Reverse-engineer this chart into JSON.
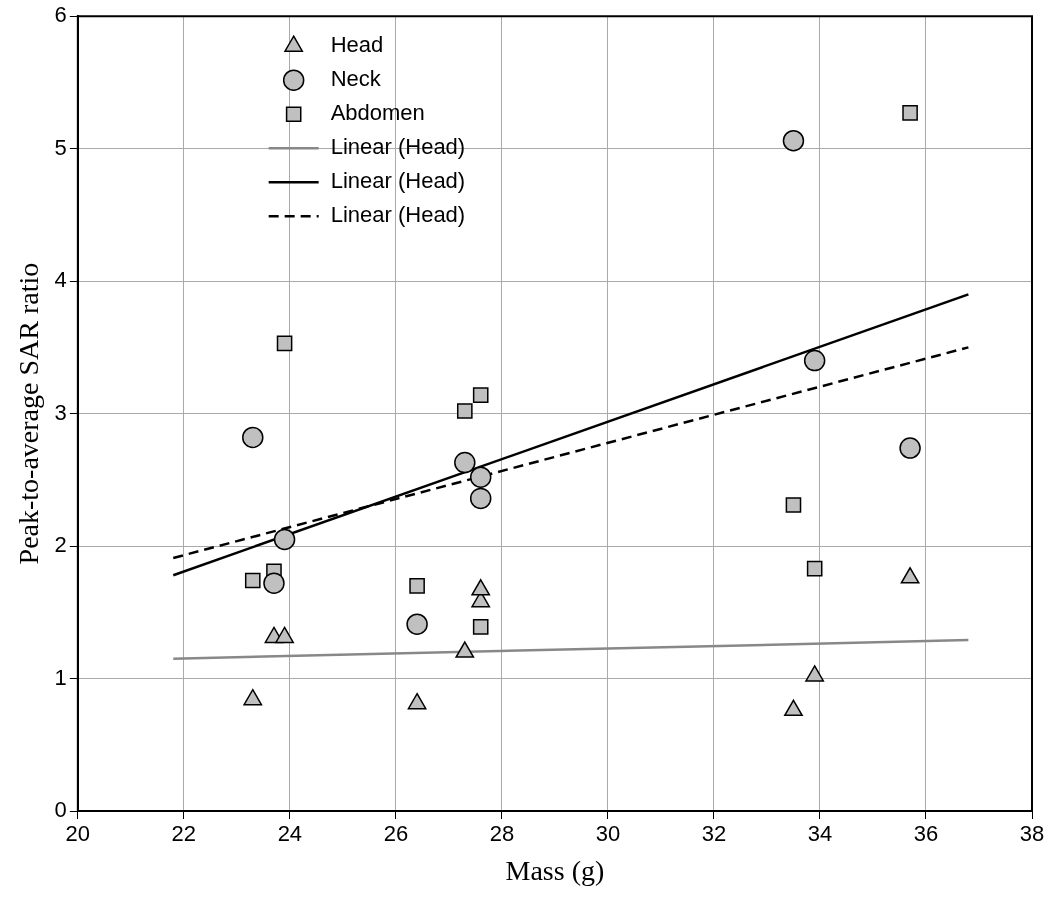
{
  "chart_data": {
    "type": "scatter",
    "xlabel": "Mass (g)",
    "ylabel": "Peak-to-average SAR ratio",
    "xlim": [
      20,
      38
    ],
    "xticks": [
      20,
      22,
      24,
      26,
      28,
      30,
      32,
      34,
      36,
      38
    ],
    "ylim": [
      0,
      6
    ],
    "yticks": [
      0,
      1,
      2,
      3,
      4,
      5,
      6
    ],
    "grid": true,
    "legend": "top",
    "series": [
      {
        "name": "Head",
        "marker": "triangle",
        "color": "#c0c0c0",
        "x": [
          23.3,
          23.7,
          23.9,
          26.4,
          27.3,
          27.6,
          27.6,
          33.5,
          33.9,
          35.7
        ],
        "values": [
          0.84,
          1.31,
          1.31,
          0.81,
          1.2,
          1.58,
          1.67,
          0.76,
          1.02,
          1.76
        ]
      },
      {
        "name": "Neck",
        "marker": "circle",
        "color": "#c0c0c0",
        "x": [
          23.3,
          23.7,
          23.9,
          26.4,
          27.3,
          27.6,
          27.6,
          33.5,
          33.9,
          35.7
        ],
        "values": [
          2.82,
          1.72,
          2.05,
          1.41,
          2.63,
          2.52,
          2.36,
          5.06,
          3.4,
          2.74
        ]
      },
      {
        "name": "Abdomen",
        "marker": "square",
        "color": "#c0c0c0",
        "x": [
          23.3,
          23.7,
          23.9,
          26.4,
          27.3,
          27.6,
          27.6,
          33.5,
          33.9,
          35.7
        ],
        "values": [
          1.74,
          1.81,
          3.53,
          1.7,
          3.02,
          3.14,
          1.39,
          2.31,
          1.83,
          5.27
        ]
      },
      {
        "name": "Linear (Head)",
        "type": "line",
        "marker": "none",
        "line_style": "solid",
        "color": "#888888",
        "x": [
          21.8,
          36.8
        ],
        "values": [
          1.15,
          1.29
        ]
      },
      {
        "name": "Linear (Head)",
        "type": "line",
        "marker": "none",
        "line_style": "solid",
        "color": "#000000",
        "x": [
          21.8,
          36.8
        ],
        "values": [
          1.78,
          3.9
        ]
      },
      {
        "name": "Linear (Head)",
        "type": "line",
        "marker": "none",
        "line_style": "dashed",
        "color": "#000000",
        "x": [
          21.8,
          36.8
        ],
        "values": [
          1.91,
          3.5
        ]
      }
    ]
  }
}
